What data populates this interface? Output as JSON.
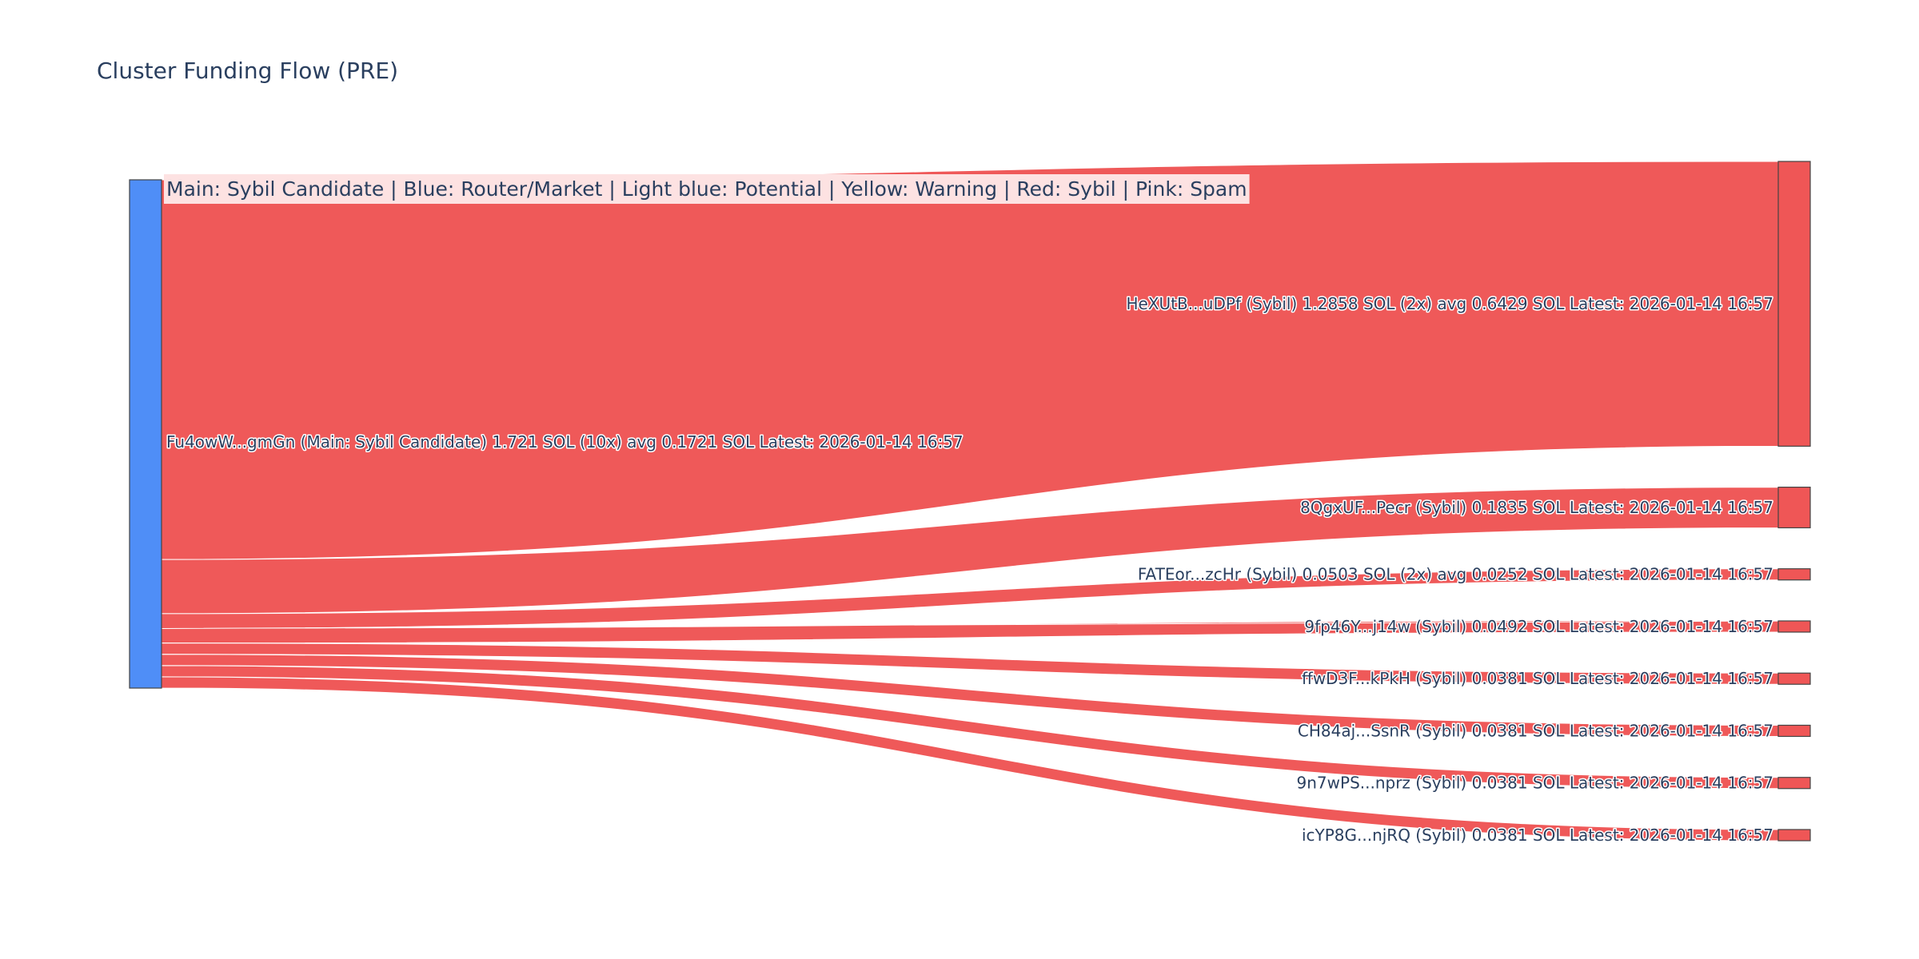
{
  "title": "Cluster Funding Flow (PRE)",
  "legend": {
    "text": "Main: Sybil Candidate  |  Blue: Router/Market | Light blue: Potential | Yellow: Warning | Red: Sybil | Pink: Spam"
  },
  "colors": {
    "source_node": "#4f8ef7",
    "target_node": "#ef5656",
    "link": "#ef5656",
    "legend_bg": "#fde2e2",
    "text": "#2a3f5f"
  },
  "chart_data": {
    "type": "sankey",
    "title": "Cluster Funding Flow (PRE)",
    "source": {
      "name": "Fu4owW...gmGn",
      "label": "Fu4owW...gmGn (Main: Sybil Candidate) 1.721 SOL (10x) avg 0.1721 SOL Latest: 2026-01-14 16:57",
      "role": "Main: Sybil Candidate",
      "total_sol": 1.721
    },
    "targets": [
      {
        "name": "HeXUtB...uDPf",
        "label": "HeXUtB...uDPf (Sybil) 1.2858 SOL (2x) avg 0.6429 SOL Latest: 2026-01-14 16:57",
        "value": 1.2858
      },
      {
        "name": "8QgxUF...Pecr",
        "label": "8QgxUF...Pecr (Sybil) 0.1835 SOL Latest: 2026-01-14 16:57",
        "value": 0.1835
      },
      {
        "name": "FATEor...zcHr",
        "label": "FATEor...zcHr (Sybil) 0.0503 SOL (2x) avg 0.0252 SOL Latest: 2026-01-14 16:57",
        "value": 0.0503
      },
      {
        "name": "9fp46Y...j14w",
        "label": "9fp46Y...j14w (Sybil) 0.0492 SOL Latest: 2026-01-14 16:57",
        "value": 0.0492
      },
      {
        "name": "ffwD3F...kPkH",
        "label": "ffwD3F...kPkH (Sybil) 0.0381 SOL Latest: 2026-01-14 16:57",
        "value": 0.0381
      },
      {
        "name": "CH84aj...SsnR",
        "label": "CH84aj...SsnR (Sybil) 0.0381 SOL Latest: 2026-01-14 16:57",
        "value": 0.0381
      },
      {
        "name": "9n7wPS...nprz",
        "label": "9n7wPS...nprz (Sybil) 0.0381 SOL Latest: 2026-01-14 16:57",
        "value": 0.0381
      },
      {
        "name": "icYP8G...njRQ",
        "label": "icYP8G...njRQ (Sybil) 0.0381 SOL Latest: 2026-01-14 16:57",
        "value": 0.0381
      }
    ]
  }
}
